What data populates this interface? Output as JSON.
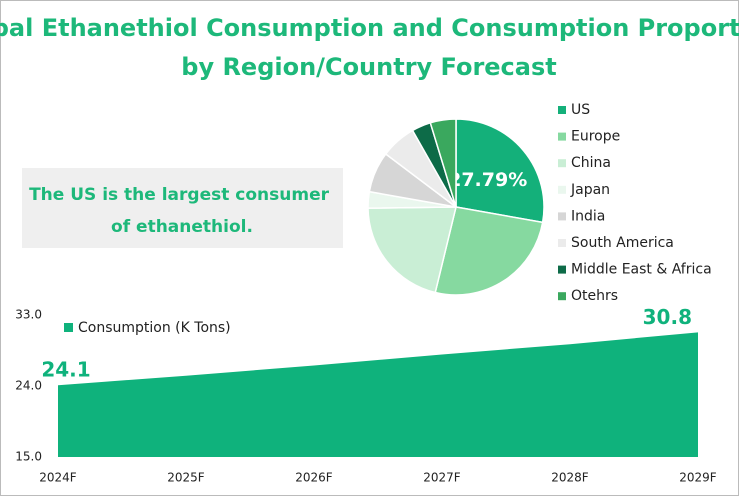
{
  "title": "Global Ethanethiol Consumption and Consumption Proportion by Region/Country Forecast",
  "callout": "The US is the largest consumer of ethanethiol.",
  "chart_data": [
    {
      "type": "pie",
      "categories": [
        "US",
        "Europe",
        "China",
        "Japan",
        "India",
        "South America",
        "Middle East & Africa",
        "Otehrs"
      ],
      "values": [
        27.79,
        26,
        21,
        3,
        7.5,
        6.5,
        3.5,
        4.71
      ],
      "value_labels": [
        "27.79%",
        null,
        null,
        null,
        null,
        null,
        null,
        null
      ],
      "colors": [
        "#14b07a",
        "#86d9a0",
        "#c9eed5",
        "#eaf7ee",
        "#d6d6d6",
        "#ebebeb",
        "#0d6b48",
        "#3aa85e"
      ],
      "legend": "right"
    },
    {
      "type": "area",
      "categories": [
        "2024F",
        "2025F",
        "2026F",
        "2027F",
        "2028F",
        "2029F"
      ],
      "series": [
        {
          "name": "Consumption (K Tons)",
          "color": "#0fb27c",
          "values": [
            24.1,
            25.3,
            26.6,
            28.0,
            29.3,
            30.8
          ]
        }
      ],
      "ylim": [
        15,
        33
      ],
      "yticks": [
        {
          "value": 15,
          "label": "15.0"
        },
        {
          "value": 24,
          "label": "24.0"
        },
        {
          "value": 33,
          "label": "33.0"
        }
      ],
      "legend": "top-left"
    }
  ]
}
